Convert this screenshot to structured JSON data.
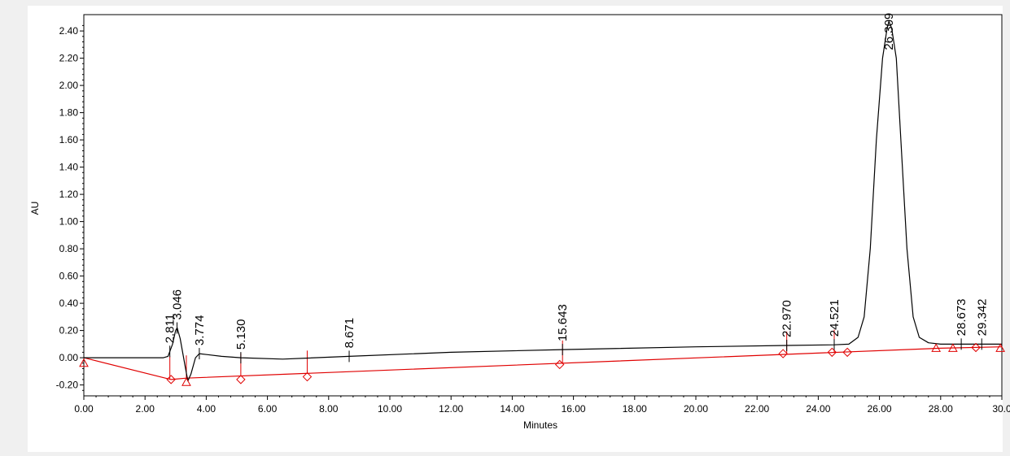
{
  "chart_data": {
    "type": "line",
    "xlabel": "Minutes",
    "ylabel": "AU",
    "xlim": [
      0,
      30
    ],
    "ylim": [
      -0.28,
      2.52
    ],
    "x_ticks": [
      "0.00",
      "2.00",
      "4.00",
      "6.00",
      "8.00",
      "10.00",
      "12.00",
      "14.00",
      "16.00",
      "18.00",
      "20.00",
      "22.00",
      "24.00",
      "26.00",
      "28.00",
      "30.0"
    ],
    "y_ticks": [
      "-0.20",
      "0.00",
      "0.20",
      "0.40",
      "0.60",
      "0.80",
      "1.00",
      "1.20",
      "1.40",
      "1.60",
      "1.80",
      "2.00",
      "2.20",
      "2.40"
    ],
    "series": [
      {
        "color": "#000000",
        "points": [
          [
            0,
            0
          ],
          [
            2.6,
            0
          ],
          [
            2.75,
            0.01
          ],
          [
            2.9,
            0.1
          ],
          [
            3.0,
            0.2
          ],
          [
            3.05,
            0.22
          ],
          [
            3.15,
            0.14
          ],
          [
            3.3,
            -0.05
          ],
          [
            3.4,
            -0.17
          ],
          [
            3.5,
            -0.12
          ],
          [
            3.65,
            0.0
          ],
          [
            3.774,
            0.03
          ],
          [
            4.5,
            0.01
          ],
          [
            5.13,
            0.0
          ],
          [
            6.5,
            -0.01
          ],
          [
            8.671,
            0.01
          ],
          [
            12.0,
            0.04
          ],
          [
            15.643,
            0.06
          ],
          [
            20.0,
            0.08
          ],
          [
            22.97,
            0.09
          ],
          [
            24.521,
            0.095
          ],
          [
            25.0,
            0.1
          ],
          [
            25.3,
            0.15
          ],
          [
            25.5,
            0.3
          ],
          [
            25.7,
            0.8
          ],
          [
            25.9,
            1.6
          ],
          [
            26.1,
            2.2
          ],
          [
            26.25,
            2.42
          ],
          [
            26.309,
            2.47
          ],
          [
            26.4,
            2.42
          ],
          [
            26.55,
            2.2
          ],
          [
            26.7,
            1.6
          ],
          [
            26.9,
            0.8
          ],
          [
            27.1,
            0.3
          ],
          [
            27.3,
            0.15
          ],
          [
            27.6,
            0.11
          ],
          [
            28.0,
            0.1
          ],
          [
            28.673,
            0.1
          ],
          [
            29.342,
            0.1
          ],
          [
            30,
            0.1
          ]
        ]
      },
      {
        "color": "#e00000",
        "points": [
          [
            0,
            0
          ],
          [
            2.85,
            -0.16
          ],
          [
            3.35,
            -0.15
          ],
          [
            28.0,
            0.07
          ],
          [
            30,
            0.08
          ]
        ]
      }
    ],
    "peak_labels": [
      {
        "rt": 2.811,
        "text": "2.811"
      },
      {
        "rt": 3.046,
        "text": "3.046"
      },
      {
        "rt": 3.774,
        "text": "3.774"
      },
      {
        "rt": 5.13,
        "text": "5.130"
      },
      {
        "rt": 8.671,
        "text": "8.671"
      },
      {
        "rt": 15.643,
        "text": "15.643"
      },
      {
        "rt": 22.97,
        "text": "22.970"
      },
      {
        "rt": 24.521,
        "text": "24.521"
      },
      {
        "rt": 26.309,
        "text": "26.309"
      },
      {
        "rt": 28.673,
        "text": "28.673"
      },
      {
        "rt": 29.342,
        "text": "29.342"
      }
    ],
    "black_ticks": [
      2.811,
      3.046,
      3.774,
      5.13,
      8.671,
      15.643,
      22.97,
      24.521,
      28.673,
      29.342
    ],
    "red_ticks": [
      2.811,
      3.35,
      5.13,
      7.3,
      15.643,
      22.97,
      24.521
    ],
    "diamond_markers": [
      [
        2.85,
        -0.16
      ],
      [
        5.13,
        -0.16
      ],
      [
        7.3,
        -0.14
      ],
      [
        15.55,
        -0.05
      ],
      [
        22.85,
        0.03
      ],
      [
        24.45,
        0.04
      ],
      [
        24.95,
        0.04
      ],
      [
        29.15,
        0.075
      ]
    ],
    "triangle_markers": [
      [
        0.0,
        -0.04
      ],
      [
        3.35,
        -0.18
      ],
      [
        27.85,
        0.07
      ],
      [
        28.4,
        0.07
      ],
      [
        29.95,
        0.07
      ]
    ],
    "grid": false,
    "legend": "none"
  }
}
